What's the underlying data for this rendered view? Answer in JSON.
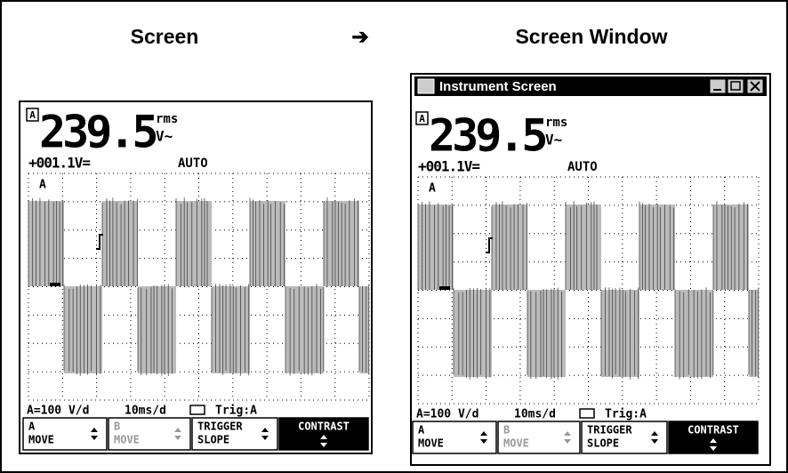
{
  "header": {
    "left": "Screen",
    "arrow": "➔",
    "right": "Screen Window"
  },
  "window": {
    "title": "Instrument Screen"
  },
  "display": {
    "channel_badge": "A",
    "reading": "239.5",
    "reading_unit_top": "rms",
    "reading_unit": "V~",
    "offset": "+001.1V=",
    "mode": "AUTO",
    "trace_label": "A",
    "status": {
      "range": "A=100 V/d",
      "timebase": "10ms/d",
      "trigger": "Trig:A"
    },
    "buttons": [
      {
        "line1": "A",
        "line2": "MOVE"
      },
      {
        "line1": "B",
        "line2": "MOVE"
      },
      {
        "line1": "TRIGGER",
        "line2": "SLOPE"
      },
      {
        "line1": "CONTRAST"
      }
    ]
  }
}
